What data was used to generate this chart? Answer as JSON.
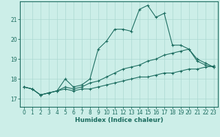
{
  "xlabel": "Humidex (Indice chaleur)",
  "bg_color": "#cceee8",
  "line_color": "#1a6b5e",
  "grid_color": "#aad8d0",
  "x_ticks": [
    0,
    1,
    2,
    3,
    4,
    5,
    6,
    7,
    8,
    9,
    10,
    11,
    12,
    13,
    14,
    15,
    16,
    17,
    18,
    19,
    20,
    21,
    22,
    23
  ],
  "y_ticks": [
    17,
    18,
    19,
    20,
    21
  ],
  "ylim": [
    16.6,
    21.9
  ],
  "xlim": [
    -0.5,
    23.5
  ],
  "curve1_x": [
    0,
    1,
    2,
    3,
    4,
    5,
    6,
    7,
    8,
    9,
    10,
    11,
    12,
    13,
    14,
    15,
    16,
    17,
    18,
    19,
    20,
    21,
    22,
    23
  ],
  "curve1_y": [
    17.6,
    17.5,
    17.2,
    17.3,
    17.4,
    18.0,
    17.6,
    17.7,
    18.0,
    19.5,
    19.9,
    20.5,
    20.5,
    20.4,
    21.5,
    21.7,
    21.1,
    21.3,
    19.7,
    19.7,
    19.5,
    18.9,
    18.7,
    18.6
  ],
  "curve2_x": [
    0,
    1,
    2,
    3,
    4,
    5,
    6,
    7,
    8,
    9,
    10,
    11,
    12,
    13,
    14,
    15,
    16,
    17,
    18,
    19,
    20,
    21,
    22,
    23
  ],
  "curve2_y": [
    17.6,
    17.5,
    17.2,
    17.3,
    17.4,
    17.6,
    17.5,
    17.6,
    17.8,
    17.9,
    18.1,
    18.3,
    18.5,
    18.6,
    18.7,
    18.9,
    19.0,
    19.2,
    19.3,
    19.4,
    19.5,
    19.0,
    18.8,
    18.6
  ],
  "curve3_x": [
    0,
    1,
    2,
    3,
    4,
    5,
    6,
    7,
    8,
    9,
    10,
    11,
    12,
    13,
    14,
    15,
    16,
    17,
    18,
    19,
    20,
    21,
    22,
    23
  ],
  "curve3_y": [
    17.6,
    17.5,
    17.2,
    17.3,
    17.4,
    17.5,
    17.4,
    17.5,
    17.5,
    17.6,
    17.7,
    17.8,
    17.9,
    18.0,
    18.1,
    18.1,
    18.2,
    18.3,
    18.3,
    18.4,
    18.5,
    18.5,
    18.6,
    18.65
  ]
}
